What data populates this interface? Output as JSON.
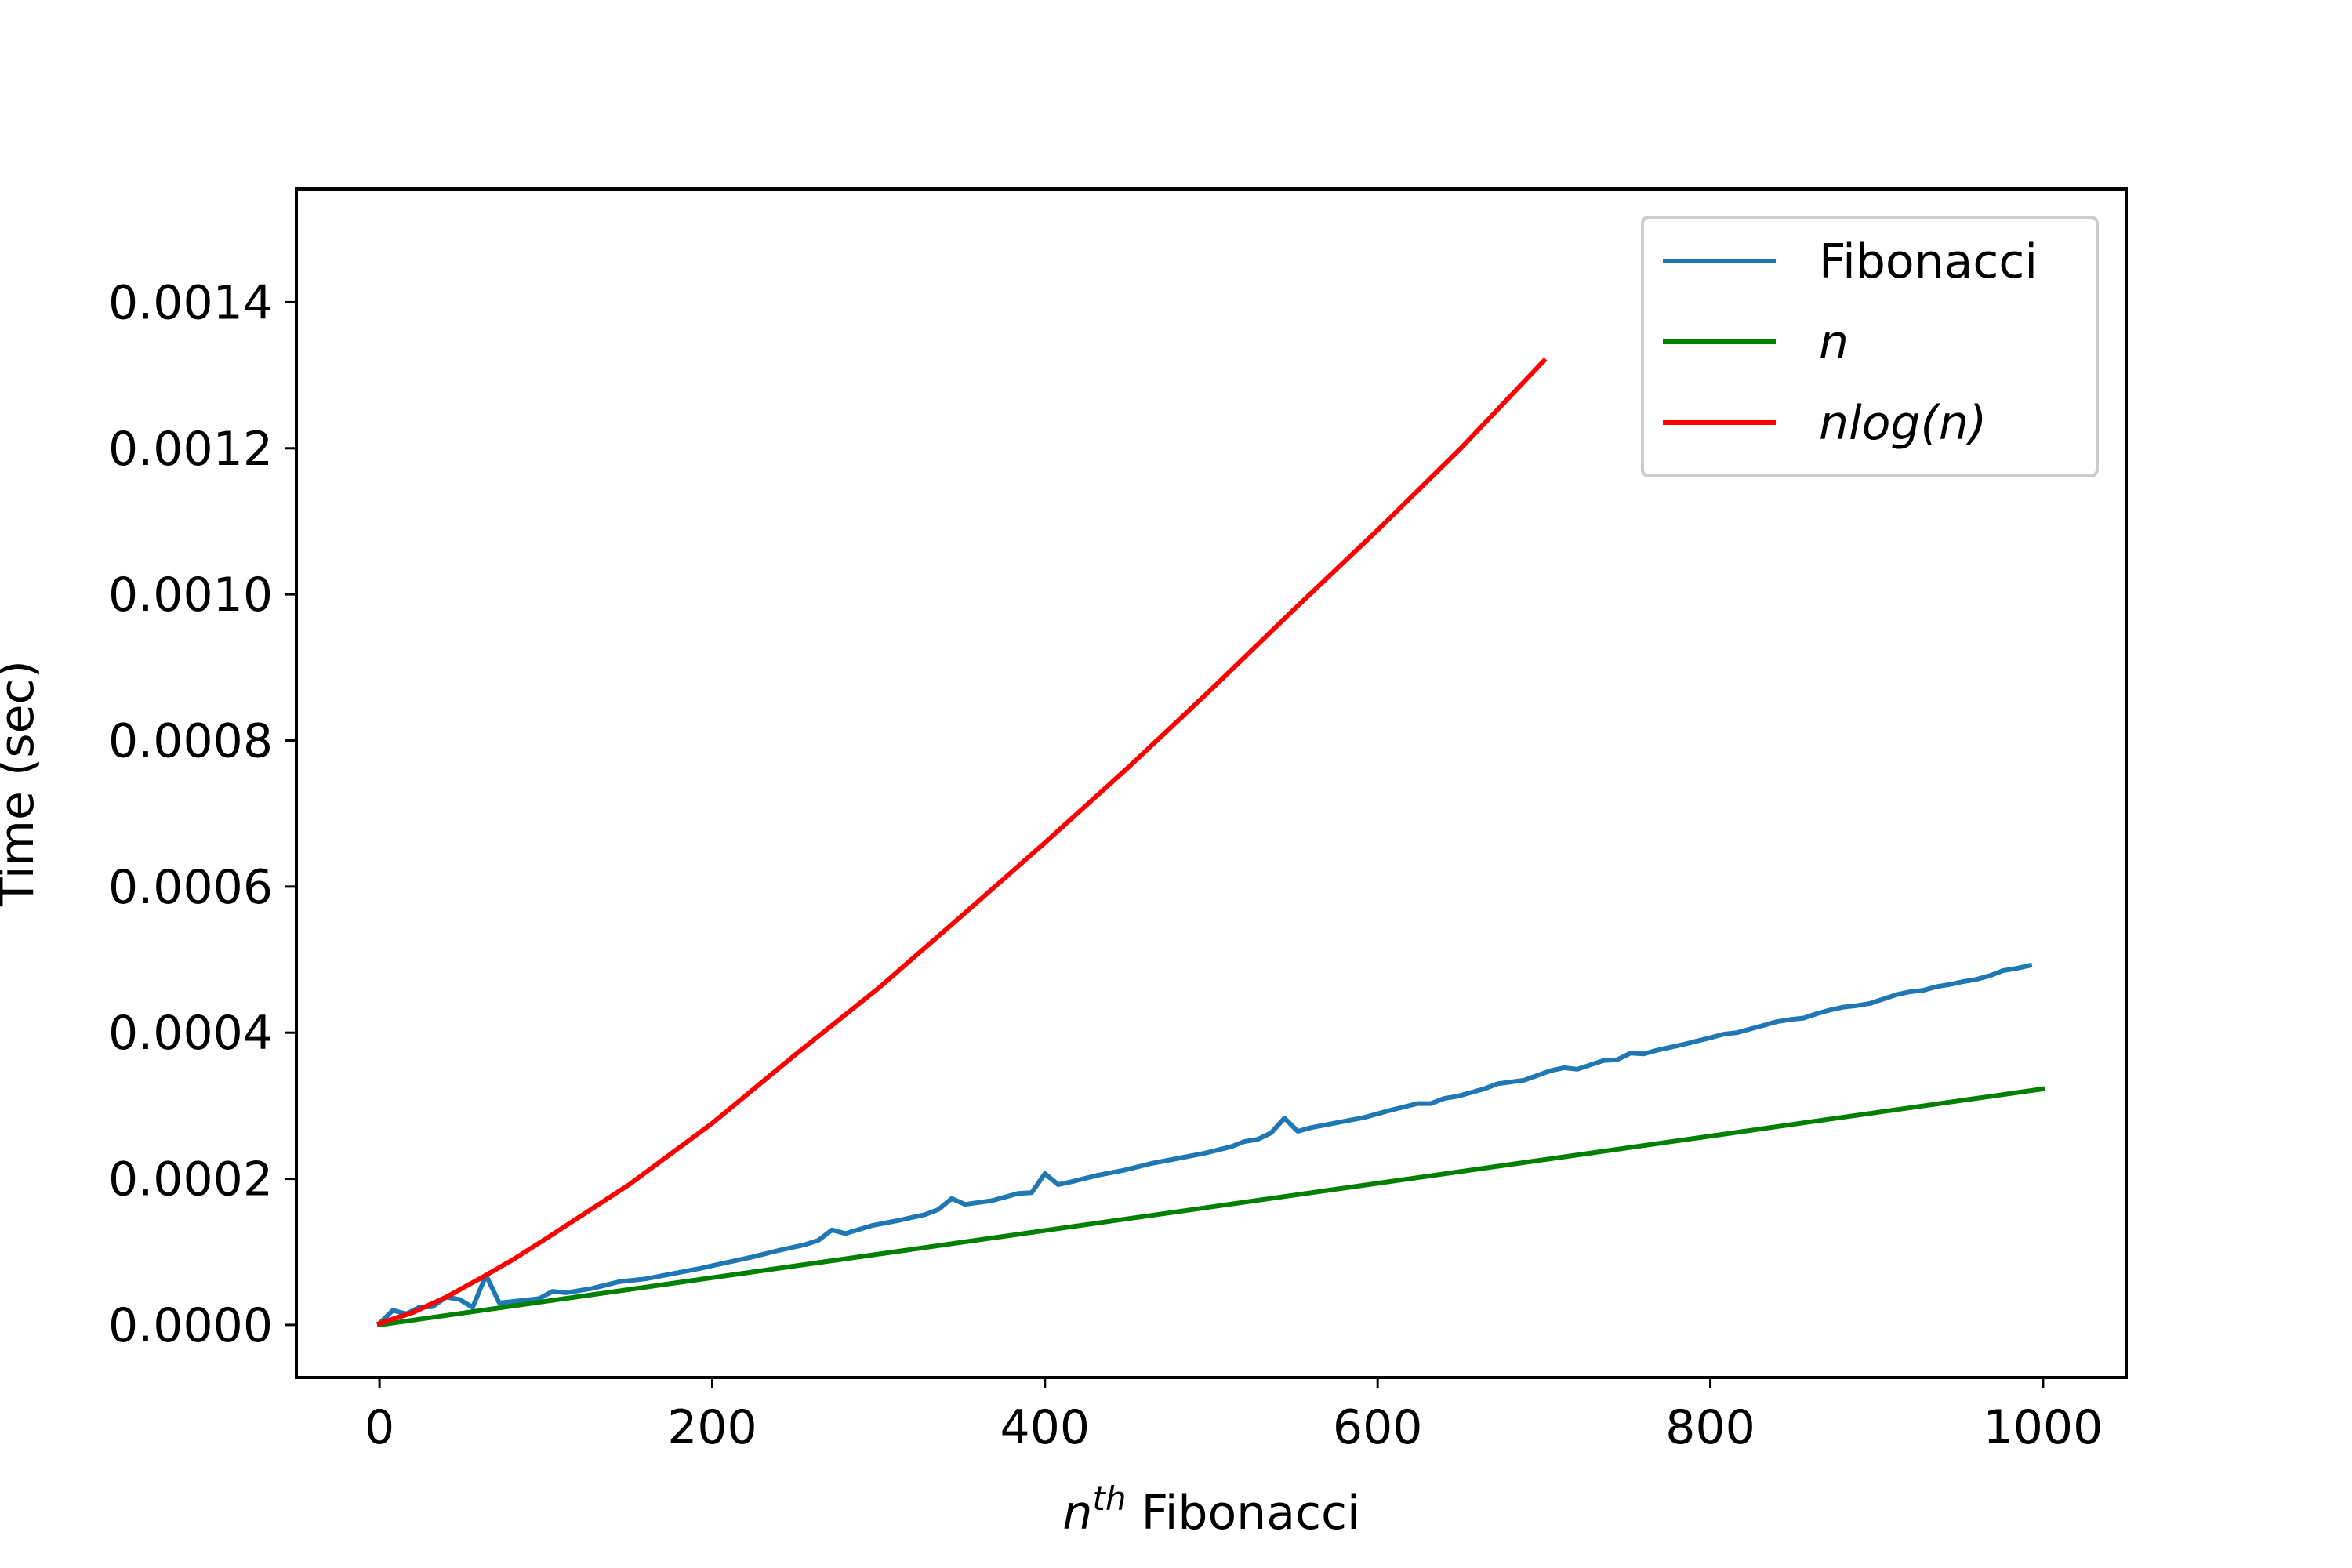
{
  "chart_data": {
    "type": "line",
    "title": "",
    "xlabel": {
      "base": "n",
      "sup": "th",
      "rest": " Fibonacci"
    },
    "ylabel": "Time (sec)",
    "xlim": [
      -50,
      1050
    ],
    "ylim": [
      -7.2e-05,
      0.001555
    ],
    "x_ticks": [
      0,
      200,
      400,
      600,
      800,
      1000
    ],
    "x_tick_labels": [
      "0",
      "200",
      "400",
      "600",
      "800",
      "1000"
    ],
    "y_ticks": [
      0,
      0.0002,
      0.0004,
      0.0006,
      0.0008,
      0.001,
      0.0012,
      0.0014
    ],
    "y_tick_labels": [
      "0.0000",
      "0.0002",
      "0.0004",
      "0.0006",
      "0.0008",
      "0.0010",
      "0.0012",
      "0.0014"
    ],
    "grid": false,
    "legend": {
      "position": "top-right"
    },
    "series": [
      {
        "name": "Fibonacci",
        "color": "#1f77b4",
        "x": [
          0,
          8,
          16,
          24,
          32,
          40,
          48,
          56,
          64,
          72,
          80,
          96,
          104,
          112,
          128,
          144,
          160,
          176,
          192,
          208,
          224,
          240,
          256,
          264,
          272,
          280,
          296,
          312,
          328,
          336,
          344,
          352,
          368,
          384,
          392,
          400,
          408,
          416,
          432,
          448,
          464,
          480,
          496,
          512,
          520,
          528,
          536,
          544,
          552,
          560,
          576,
          592,
          608,
          624,
          632,
          640,
          648,
          656,
          664,
          672,
          688,
          704,
          712,
          720,
          728,
          736,
          744,
          752,
          760,
          768,
          784,
          800,
          808,
          816,
          824,
          832,
          840,
          848,
          856,
          864,
          872,
          880,
          888,
          896,
          904,
          912,
          920,
          928,
          936,
          944,
          952,
          960,
          968,
          976,
          984,
          992
        ],
        "y": [
          2e-06,
          2e-05,
          1.5e-05,
          2.4e-05,
          2.5e-05,
          3.8e-05,
          3.5e-05,
          2.4e-05,
          6.8e-05,
          3e-05,
          3.2e-05,
          3.6e-05,
          4.6e-05,
          4.4e-05,
          5e-05,
          5.9e-05,
          6.3e-05,
          7e-05,
          7.7e-05,
          8.5e-05,
          9.3e-05,
          0.000102,
          0.00011,
          0.000116,
          0.00013,
          0.000125,
          0.000136,
          0.000143,
          0.000151,
          0.000158,
          0.000173,
          0.000165,
          0.00017,
          0.00018,
          0.000181,
          0.000207,
          0.000192,
          0.000196,
          0.000205,
          0.000212,
          0.000221,
          0.000228,
          0.000235,
          0.000244,
          0.000251,
          0.000254,
          0.000263,
          0.000283,
          0.000265,
          0.00027,
          0.000277,
          0.000284,
          0.000294,
          0.000303,
          0.000303,
          0.00031,
          0.000313,
          0.000318,
          0.000323,
          0.00033,
          0.000335,
          0.000348,
          0.000352,
          0.00035,
          0.000356,
          0.000362,
          0.000363,
          0.000372,
          0.000371,
          0.000376,
          0.000384,
          0.000393,
          0.000398,
          0.0004,
          0.000405,
          0.00041,
          0.000415,
          0.000418,
          0.00042,
          0.000426,
          0.000431,
          0.000435,
          0.000437,
          0.00044,
          0.000446,
          0.000452,
          0.000456,
          0.000458,
          0.000463,
          0.000466,
          0.00047,
          0.000473,
          0.000478,
          0.000485,
          0.000488,
          0.000492
        ]
      },
      {
        "name": "n",
        "color": "#008000",
        "x": [
          0,
          1000
        ],
        "y": [
          0,
          0.000323
        ]
      },
      {
        "name": "nlog(n)",
        "color": "#ff0000",
        "x": [
          0,
          20,
          40,
          60,
          80,
          100,
          150,
          200,
          250,
          300,
          350,
          400,
          450,
          500,
          550,
          600,
          650,
          700
        ],
        "y": [
          2e-06,
          1.7e-05,
          3.8e-05,
          6.3e-05,
          8.9e-05,
          0.000118,
          0.000192,
          0.000276,
          0.00037,
          0.000461,
          0.00056,
          0.00066,
          0.000763,
          0.00087,
          0.00098,
          0.001088,
          0.0012,
          0.00132
        ]
      }
    ]
  }
}
